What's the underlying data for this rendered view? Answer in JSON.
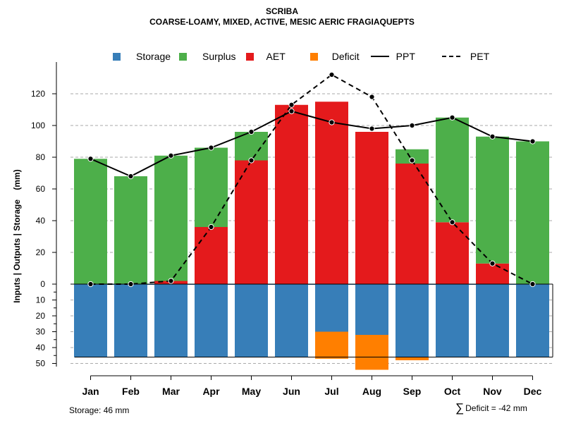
{
  "colors": {
    "storage": "#377EB8",
    "surplus": "#4DAF4A",
    "aet": "#E41A1C",
    "deficit": "#FF7F00",
    "grid": "#aaaaaa",
    "axis": "#000000"
  },
  "chart_data": {
    "type": "bar",
    "title": "SCRIBA",
    "subtitle": "COARSE-LOAMY, MIXED, ACTIVE, MESIC AERIC FRAGIAQUEPTS",
    "ylabel": "Inputs | Outputs | Storage    (mm)",
    "xlabel": "",
    "categories": [
      "Jan",
      "Feb",
      "Mar",
      "Apr",
      "May",
      "Jun",
      "Jul",
      "Aug",
      "Sep",
      "Oct",
      "Nov",
      "Dec"
    ],
    "ylim_upper": [
      0,
      140
    ],
    "upper_ticks": [
      0,
      20,
      40,
      60,
      80,
      100,
      120
    ],
    "lower_ticks": [
      0,
      10,
      20,
      30,
      40,
      50
    ],
    "ylim_lower": [
      0,
      52
    ],
    "series": [
      {
        "name": "AET",
        "values": [
          0,
          0,
          2,
          36,
          78,
          113,
          115,
          96,
          76,
          39,
          13,
          0
        ]
      },
      {
        "name": "Surplus",
        "values": [
          79,
          68,
          79,
          50,
          18,
          0,
          0,
          0,
          9,
          66,
          80,
          90
        ]
      },
      {
        "name": "Storage",
        "values": [
          46,
          46,
          46,
          46,
          46,
          42,
          30,
          32,
          46,
          46,
          46,
          46
        ]
      },
      {
        "name": "Deficit",
        "values": [
          0,
          0,
          0,
          0,
          0,
          0,
          17,
          22,
          2,
          0,
          0,
          0
        ]
      },
      {
        "name": "PPT",
        "values": [
          79,
          68,
          81,
          86,
          96,
          109,
          102,
          98,
          100,
          105,
          93,
          90
        ]
      },
      {
        "name": "PET",
        "values": [
          0,
          0,
          2,
          36,
          78,
          113,
          132,
          118,
          78,
          39,
          13,
          0
        ]
      }
    ],
    "storage_capacity": 46,
    "legend": {
      "position": "top",
      "items": [
        "Storage",
        "Surplus",
        "AET",
        "Deficit",
        "PPT",
        "PET"
      ]
    },
    "footer": {
      "storage_note": "Storage: 46 mm",
      "deficit_note": "Deficit = -42 mm"
    }
  }
}
